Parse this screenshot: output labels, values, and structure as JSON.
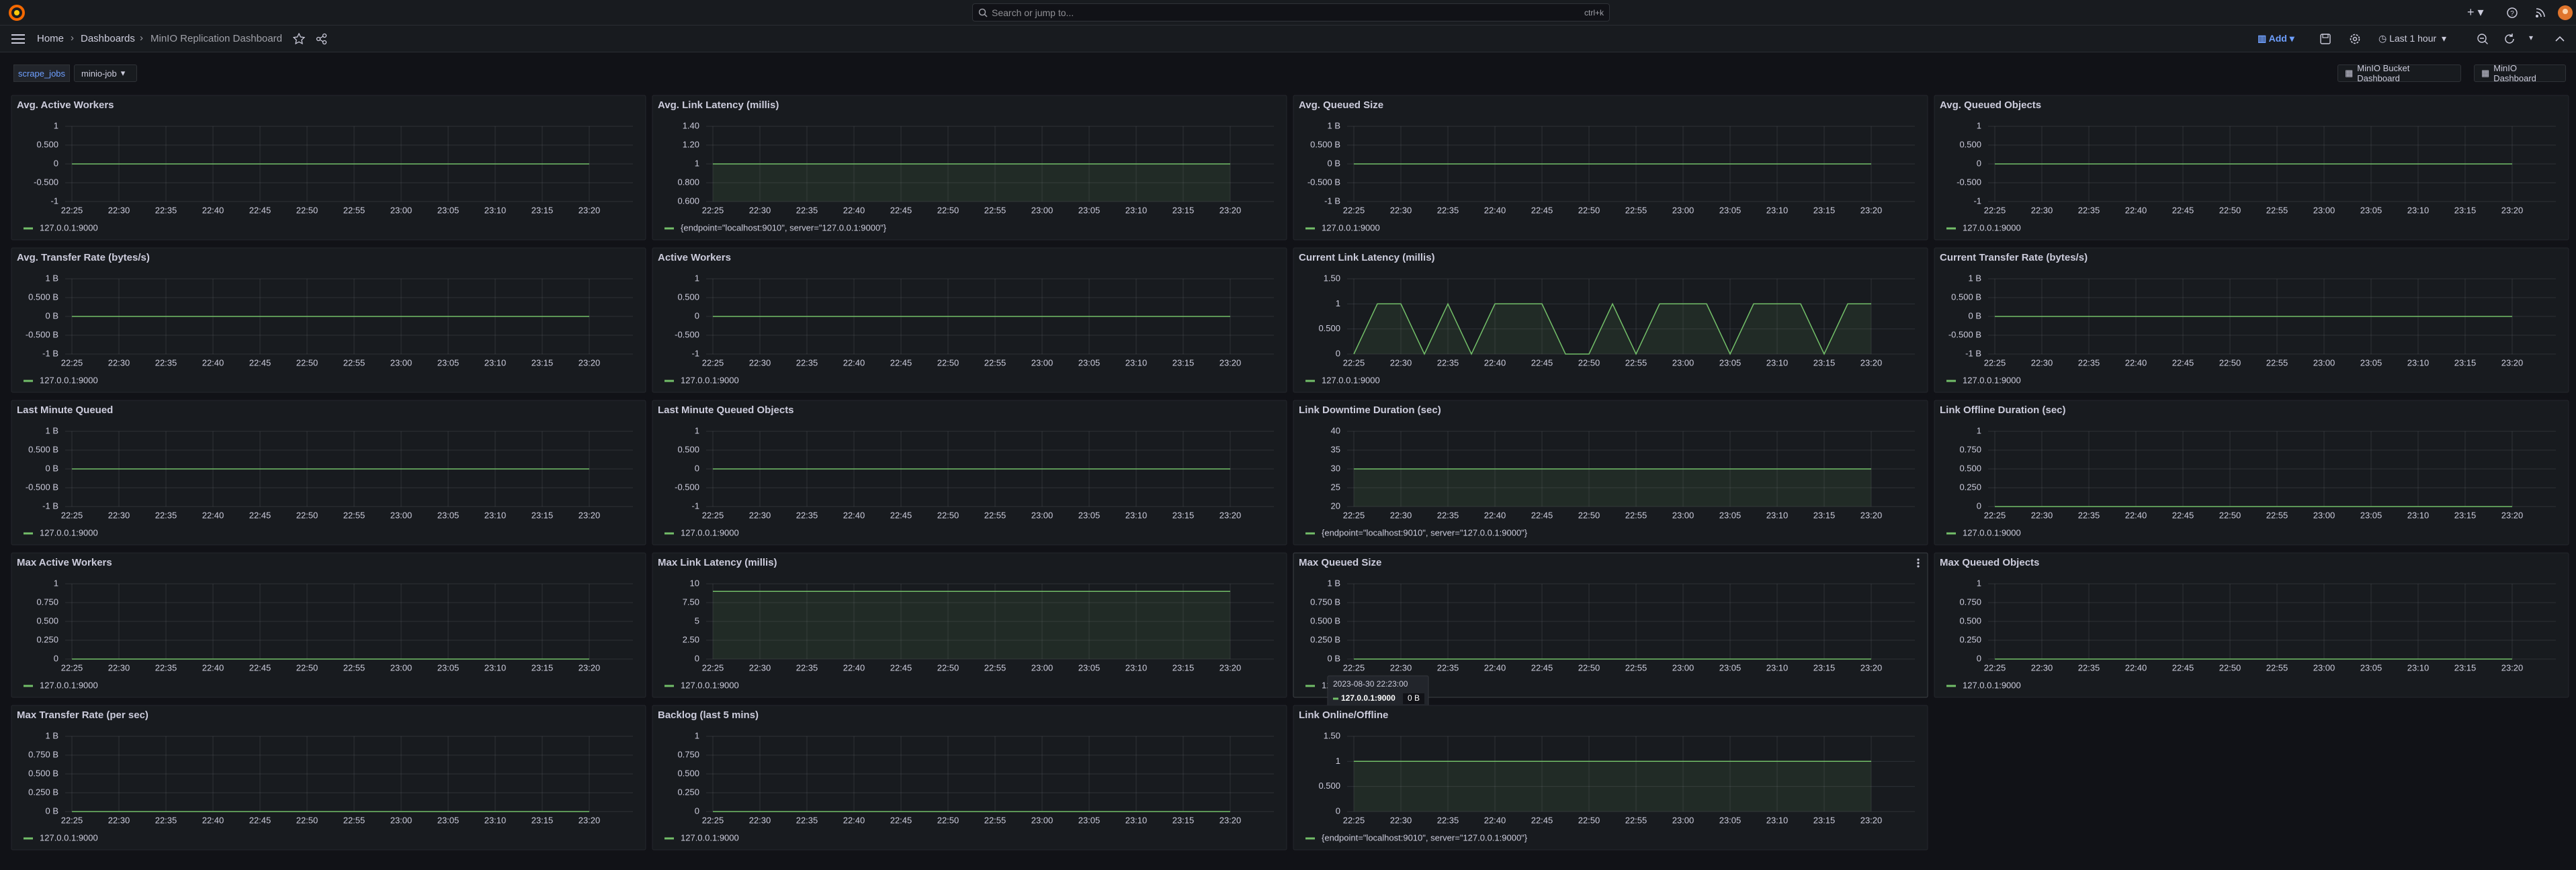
{
  "nav": {
    "search": "Search or jump to...",
    "shortcut": "ctrl+k"
  },
  "breadcrumb": [
    "Home",
    "Dashboards",
    "MinIO Replication Dashboard"
  ],
  "toolbar": {
    "add": "Add",
    "time_range": "Last 1 hour"
  },
  "variables": [
    {
      "label": "scrape_jobs",
      "value": "minio-job"
    }
  ],
  "links": [
    "MinIO Bucket Dashboard",
    "MinIO Dashboard"
  ],
  "chart_data": [
    {
      "type": "line",
      "title": "Avg. Active Workers",
      "categories": [
        "22:25",
        "22:30",
        "22:35",
        "22:40",
        "22:45",
        "22:50",
        "22:55",
        "23:00",
        "23:05",
        "23:10",
        "23:15",
        "23:20"
      ],
      "series": [
        {
          "name": "127.0.0.1:9000",
          "color": "#73bf69",
          "values": [
            0,
            0,
            0,
            0,
            0,
            0,
            0,
            0,
            0,
            0,
            0,
            0
          ]
        }
      ],
      "ylim": [
        -1,
        1
      ],
      "yticks": [
        -1,
        {
          "value": -0.5,
          "label": "-0.500"
        },
        0,
        {
          "value": 0.5,
          "label": "0.500"
        },
        1
      ],
      "grid": true,
      "fill": false
    },
    {
      "type": "line",
      "title": "Avg. Link Latency (millis)",
      "categories": [
        "22:25",
        "22:30",
        "22:35",
        "22:40",
        "22:45",
        "22:50",
        "22:55",
        "23:00",
        "23:05",
        "23:10",
        "23:15",
        "23:20"
      ],
      "series": [
        {
          "name": "{endpoint=\"localhost:9010\", server=\"127.0.0.1:9000\"}",
          "color": "#73bf69",
          "values": [
            1,
            1,
            1,
            1,
            1,
            1,
            1,
            1,
            1,
            1,
            1,
            1
          ]
        }
      ],
      "ylim": [
        0.6,
        1.4
      ],
      "yticks": [
        {
          "value": 0.6,
          "label": "0.600"
        },
        {
          "value": 0.8,
          "label": "0.800"
        },
        1,
        {
          "value": 1.2,
          "label": "1.20"
        },
        {
          "value": 1.4,
          "label": "1.40"
        }
      ],
      "grid": true,
      "fill": true
    },
    {
      "type": "line",
      "title": "Avg. Queued Size",
      "categories": [
        "22:25",
        "22:30",
        "22:35",
        "22:40",
        "22:45",
        "22:50",
        "22:55",
        "23:00",
        "23:05",
        "23:10",
        "23:15",
        "23:20"
      ],
      "series": [
        {
          "name": "127.0.0.1:9000",
          "color": "#73bf69",
          "values": [
            0,
            0,
            0,
            0,
            0,
            0,
            0,
            0,
            0,
            0,
            0,
            0
          ]
        }
      ],
      "ylim": [
        -1,
        1
      ],
      "yticks": [
        {
          "value": -1,
          "label": "-1 B"
        },
        {
          "value": -0.5,
          "label": "-0.500 B"
        },
        {
          "value": 0,
          "label": "0 B"
        },
        {
          "value": 0.5,
          "label": "0.500 B"
        },
        {
          "value": 1,
          "label": "1 B"
        }
      ],
      "grid": true,
      "fill": false
    },
    {
      "type": "line",
      "title": "Avg. Queued Objects",
      "categories": [
        "22:25",
        "22:30",
        "22:35",
        "22:40",
        "22:45",
        "22:50",
        "22:55",
        "23:00",
        "23:05",
        "23:10",
        "23:15",
        "23:20"
      ],
      "series": [
        {
          "name": "127.0.0.1:9000",
          "color": "#73bf69",
          "values": [
            0,
            0,
            0,
            0,
            0,
            0,
            0,
            0,
            0,
            0,
            0,
            0
          ]
        }
      ],
      "ylim": [
        -1,
        1
      ],
      "yticks": [
        -1,
        {
          "value": -0.5,
          "label": "-0.500"
        },
        0,
        {
          "value": 0.5,
          "label": "0.500"
        },
        1
      ],
      "grid": true,
      "fill": false
    },
    {
      "type": "line",
      "title": "Avg. Transfer Rate (bytes/s)",
      "categories": [
        "22:25",
        "22:30",
        "22:35",
        "22:40",
        "22:45",
        "22:50",
        "22:55",
        "23:00",
        "23:05",
        "23:10",
        "23:15",
        "23:20"
      ],
      "series": [
        {
          "name": "127.0.0.1:9000",
          "color": "#73bf69",
          "values": [
            0,
            0,
            0,
            0,
            0,
            0,
            0,
            0,
            0,
            0,
            0,
            0
          ]
        }
      ],
      "ylim": [
        -1,
        1
      ],
      "yticks": [
        {
          "value": -1,
          "label": "-1 B"
        },
        {
          "value": -0.5,
          "label": "-0.500 B"
        },
        {
          "value": 0,
          "label": "0 B"
        },
        {
          "value": 0.5,
          "label": "0.500 B"
        },
        {
          "value": 1,
          "label": "1 B"
        }
      ],
      "grid": true,
      "fill": false
    },
    {
      "type": "line",
      "title": "Active Workers",
      "categories": [
        "22:25",
        "22:30",
        "22:35",
        "22:40",
        "22:45",
        "22:50",
        "22:55",
        "23:00",
        "23:05",
        "23:10",
        "23:15",
        "23:20"
      ],
      "series": [
        {
          "name": "127.0.0.1:9000",
          "color": "#73bf69",
          "values": [
            0,
            0,
            0,
            0,
            0,
            0,
            0,
            0,
            0,
            0,
            0,
            0
          ]
        }
      ],
      "ylim": [
        -1,
        1
      ],
      "yticks": [
        -1,
        {
          "value": -0.5,
          "label": "-0.500"
        },
        0,
        {
          "value": 0.5,
          "label": "0.500"
        },
        1
      ],
      "grid": true,
      "fill": false
    },
    {
      "type": "line",
      "title": "Current Link Latency (millis)",
      "categories": [
        "22:25",
        null,
        "22:30",
        null,
        "22:35",
        null,
        "22:40",
        null,
        "22:45",
        null,
        "22:50",
        null,
        "22:55",
        null,
        "23:00",
        null,
        "23:05",
        null,
        "23:10",
        null,
        "23:15",
        null,
        "23:20"
      ],
      "series": [
        {
          "name": "127.0.0.1:9000",
          "color": "#73bf69",
          "values": [
            0,
            1,
            1,
            0,
            1,
            0,
            1,
            1,
            1,
            0,
            0,
            1,
            0,
            1,
            1,
            1,
            0,
            1,
            1,
            1,
            0,
            1,
            1
          ]
        }
      ],
      "ylim": [
        0,
        1.5
      ],
      "yticks": [
        0,
        {
          "value": 0.5,
          "label": "0.500"
        },
        1,
        {
          "value": 1.5,
          "label": "1.50"
        }
      ],
      "grid": true,
      "fill": true
    },
    {
      "type": "line",
      "title": "Current Transfer Rate (bytes/s)",
      "categories": [
        "22:25",
        "22:30",
        "22:35",
        "22:40",
        "22:45",
        "22:50",
        "22:55",
        "23:00",
        "23:05",
        "23:10",
        "23:15",
        "23:20"
      ],
      "series": [
        {
          "name": "127.0.0.1:9000",
          "color": "#73bf69",
          "values": [
            0,
            0,
            0,
            0,
            0,
            0,
            0,
            0,
            0,
            0,
            0,
            0
          ]
        }
      ],
      "ylim": [
        -1,
        1
      ],
      "yticks": [
        {
          "value": -1,
          "label": "-1 B"
        },
        {
          "value": -0.5,
          "label": "-0.500 B"
        },
        {
          "value": 0,
          "label": "0 B"
        },
        {
          "value": 0.5,
          "label": "0.500 B"
        },
        {
          "value": 1,
          "label": "1 B"
        }
      ],
      "grid": true,
      "fill": false
    },
    {
      "type": "line",
      "title": "Last Minute Queued",
      "categories": [
        "22:25",
        "22:30",
        "22:35",
        "22:40",
        "22:45",
        "22:50",
        "22:55",
        "23:00",
        "23:05",
        "23:10",
        "23:15",
        "23:20"
      ],
      "series": [
        {
          "name": "127.0.0.1:9000",
          "color": "#73bf69",
          "values": [
            0,
            0,
            0,
            0,
            0,
            0,
            0,
            0,
            0,
            0,
            0,
            0
          ]
        }
      ],
      "ylim": [
        -1,
        1
      ],
      "yticks": [
        {
          "value": -1,
          "label": "-1 B"
        },
        {
          "value": -0.5,
          "label": "-0.500 B"
        },
        {
          "value": 0,
          "label": "0 B"
        },
        {
          "value": 0.5,
          "label": "0.500 B"
        },
        {
          "value": 1,
          "label": "1 B"
        }
      ],
      "grid": true,
      "fill": false
    },
    {
      "type": "line",
      "title": "Last Minute Queued Objects",
      "categories": [
        "22:25",
        "22:30",
        "22:35",
        "22:40",
        "22:45",
        "22:50",
        "22:55",
        "23:00",
        "23:05",
        "23:10",
        "23:15",
        "23:20"
      ],
      "series": [
        {
          "name": "127.0.0.1:9000",
          "color": "#73bf69",
          "values": [
            0,
            0,
            0,
            0,
            0,
            0,
            0,
            0,
            0,
            0,
            0,
            0
          ]
        }
      ],
      "ylim": [
        -1,
        1
      ],
      "yticks": [
        -1,
        {
          "value": -0.5,
          "label": "-0.500"
        },
        0,
        {
          "value": 0.5,
          "label": "0.500"
        },
        1
      ],
      "grid": true,
      "fill": false
    },
    {
      "type": "line",
      "title": "Link Downtime Duration (sec)",
      "categories": [
        "22:25",
        "22:30",
        "22:35",
        "22:40",
        "22:45",
        "22:50",
        "22:55",
        "23:00",
        "23:05",
        "23:10",
        "23:15",
        "23:20"
      ],
      "series": [
        {
          "name": "{endpoint=\"localhost:9010\", server=\"127.0.0.1:9000\"}",
          "color": "#73bf69",
          "values": [
            30,
            30,
            30,
            30,
            30,
            30,
            30,
            30,
            30,
            30,
            30,
            30
          ]
        }
      ],
      "ylim": [
        20,
        40
      ],
      "yticks": [
        20,
        25,
        30,
        35,
        40
      ],
      "grid": true,
      "fill": true
    },
    {
      "type": "line",
      "title": "Link Offline Duration (sec)",
      "categories": [
        "22:25",
        "22:30",
        "22:35",
        "22:40",
        "22:45",
        "22:50",
        "22:55",
        "23:00",
        "23:05",
        "23:10",
        "23:15",
        "23:20"
      ],
      "series": [
        {
          "name": "127.0.0.1:9000",
          "color": "#73bf69",
          "values": [
            0,
            0,
            0,
            0,
            0,
            0,
            0,
            0,
            0,
            0,
            0,
            0
          ]
        }
      ],
      "ylim": [
        0,
        1
      ],
      "yticks": [
        0,
        {
          "value": 0.25,
          "label": "0.250"
        },
        {
          "value": 0.5,
          "label": "0.500"
        },
        {
          "value": 0.75,
          "label": "0.750"
        },
        1
      ],
      "grid": true,
      "fill": false
    },
    {
      "type": "line",
      "title": "Max Active Workers",
      "categories": [
        "22:25",
        "22:30",
        "22:35",
        "22:40",
        "22:45",
        "22:50",
        "22:55",
        "23:00",
        "23:05",
        "23:10",
        "23:15",
        "23:20"
      ],
      "series": [
        {
          "name": "127.0.0.1:9000",
          "color": "#73bf69",
          "values": [
            0,
            0,
            0,
            0,
            0,
            0,
            0,
            0,
            0,
            0,
            0,
            0
          ]
        }
      ],
      "ylim": [
        0,
        1
      ],
      "yticks": [
        0,
        {
          "value": 0.25,
          "label": "0.250"
        },
        {
          "value": 0.5,
          "label": "0.500"
        },
        {
          "value": 0.75,
          "label": "0.750"
        },
        1
      ],
      "grid": true,
      "fill": false
    },
    {
      "type": "line",
      "title": "Max Link Latency (millis)",
      "categories": [
        "22:25",
        "22:30",
        "22:35",
        "22:40",
        "22:45",
        "22:50",
        "22:55",
        "23:00",
        "23:05",
        "23:10",
        "23:15",
        "23:20"
      ],
      "series": [
        {
          "name": "127.0.0.1:9000",
          "color": "#73bf69",
          "values": [
            9,
            9,
            9,
            9,
            9,
            9,
            9,
            9,
            9,
            9,
            9,
            9
          ]
        }
      ],
      "ylim": [
        0,
        10
      ],
      "yticks": [
        0,
        {
          "value": 2.5,
          "label": "2.50"
        },
        5,
        {
          "value": 7.5,
          "label": "7.50"
        },
        10
      ],
      "grid": true,
      "fill": true
    },
    {
      "type": "line",
      "title": "Max Queued Size",
      "categories": [
        "22:25",
        "22:30",
        "22:35",
        "22:40",
        "22:45",
        "22:50",
        "22:55",
        "23:00",
        "23:05",
        "23:10",
        "23:15",
        "23:20"
      ],
      "series": [
        {
          "name": "127.0.0.1:9000",
          "color": "#73bf69",
          "values": [
            0,
            0,
            0,
            0,
            0,
            0,
            0,
            0,
            0,
            0,
            0,
            0
          ]
        }
      ],
      "ylim": [
        0,
        1
      ],
      "yticks": [
        {
          "value": 0,
          "label": "0 B"
        },
        {
          "value": 0.25,
          "label": "0.250 B"
        },
        {
          "value": 0.5,
          "label": "0.500 B"
        },
        {
          "value": 0.75,
          "label": "0.750 B"
        },
        {
          "value": 1,
          "label": "1 B"
        }
      ],
      "grid": true,
      "fill": false,
      "tooltip": {
        "time": "2023-08-30 22:23:00",
        "series": "127.0.0.1:9000",
        "value": "0 B"
      }
    },
    {
      "type": "line",
      "title": "Max Queued Objects",
      "categories": [
        "22:25",
        "22:30",
        "22:35",
        "22:40",
        "22:45",
        "22:50",
        "22:55",
        "23:00",
        "23:05",
        "23:10",
        "23:15",
        "23:20"
      ],
      "series": [
        {
          "name": "127.0.0.1:9000",
          "color": "#73bf69",
          "values": [
            0,
            0,
            0,
            0,
            0,
            0,
            0,
            0,
            0,
            0,
            0,
            0
          ]
        }
      ],
      "ylim": [
        0,
        1
      ],
      "yticks": [
        0,
        {
          "value": 0.25,
          "label": "0.250"
        },
        {
          "value": 0.5,
          "label": "0.500"
        },
        {
          "value": 0.75,
          "label": "0.750"
        },
        1
      ],
      "grid": true,
      "fill": false
    },
    {
      "type": "line",
      "title": "Max Transfer Rate (per sec)",
      "categories": [
        "22:25",
        "22:30",
        "22:35",
        "22:40",
        "22:45",
        "22:50",
        "22:55",
        "23:00",
        "23:05",
        "23:10",
        "23:15",
        "23:20"
      ],
      "series": [
        {
          "name": "127.0.0.1:9000",
          "color": "#73bf69",
          "values": [
            0,
            0,
            0,
            0,
            0,
            0,
            0,
            0,
            0,
            0,
            0,
            0
          ]
        }
      ],
      "ylim": [
        0,
        1
      ],
      "yticks": [
        {
          "value": 0,
          "label": "0 B"
        },
        {
          "value": 0.25,
          "label": "0.250 B"
        },
        {
          "value": 0.5,
          "label": "0.500 B"
        },
        {
          "value": 0.75,
          "label": "0.750 B"
        },
        {
          "value": 1,
          "label": "1 B"
        }
      ],
      "grid": true,
      "fill": false
    },
    {
      "type": "line",
      "title": "Backlog (last 5 mins)",
      "categories": [
        "22:25",
        "22:30",
        "22:35",
        "22:40",
        "22:45",
        "22:50",
        "22:55",
        "23:00",
        "23:05",
        "23:10",
        "23:15",
        "23:20"
      ],
      "series": [
        {
          "name": "127.0.0.1:9000",
          "color": "#73bf69",
          "values": [
            0,
            0,
            0,
            0,
            0,
            0,
            0,
            0,
            0,
            0,
            0,
            0
          ]
        }
      ],
      "ylim": [
        0,
        1
      ],
      "yticks": [
        0,
        {
          "value": 0.25,
          "label": "0.250"
        },
        {
          "value": 0.5,
          "label": "0.500"
        },
        {
          "value": 0.75,
          "label": "0.750"
        },
        1
      ],
      "grid": true,
      "fill": false
    },
    {
      "type": "line",
      "title": "Link Online/Offline",
      "categories": [
        "22:25",
        "22:30",
        "22:35",
        "22:40",
        "22:45",
        "22:50",
        "22:55",
        "23:00",
        "23:05",
        "23:10",
        "23:15",
        "23:20"
      ],
      "series": [
        {
          "name": "{endpoint=\"localhost:9010\", server=\"127.0.0.1:9000\"}",
          "color": "#73bf69",
          "values": [
            1,
            1,
            1,
            1,
            1,
            1,
            1,
            1,
            1,
            1,
            1,
            1
          ]
        }
      ],
      "ylim": [
        0,
        1.5
      ],
      "yticks": [
        0,
        {
          "value": 0.5,
          "label": "0.500"
        },
        1,
        {
          "value": 1.5,
          "label": "1.50"
        }
      ],
      "grid": true,
      "fill": true
    }
  ]
}
